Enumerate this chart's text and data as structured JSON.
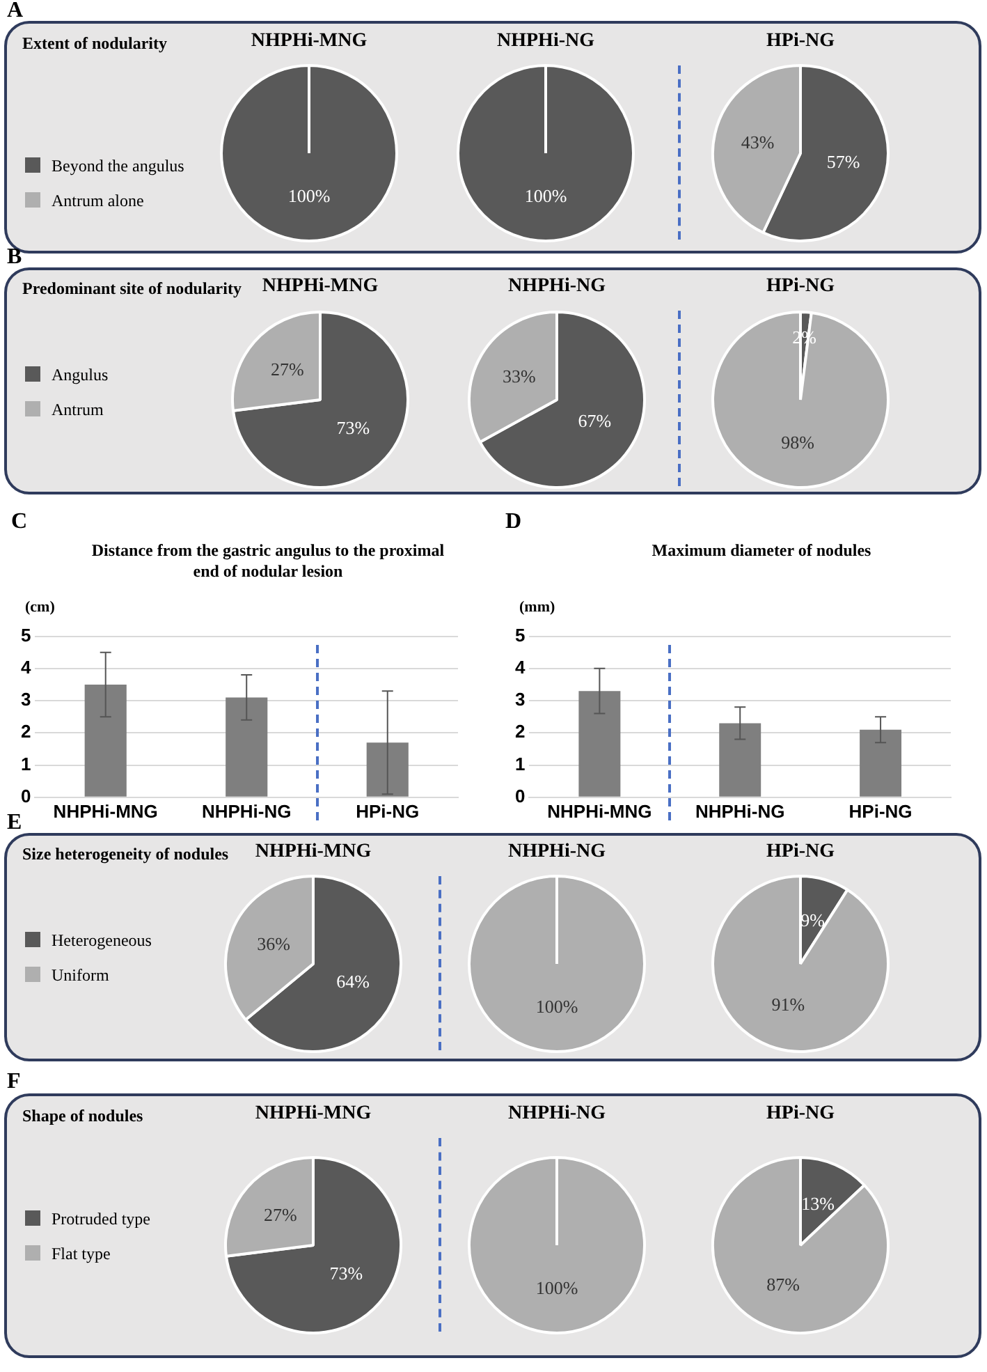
{
  "chart_data": [
    {
      "type": "pie",
      "title": "NHPHi-MNG",
      "categories": [
        "Beyond the angulus",
        "Antrum alone"
      ],
      "values": [
        100,
        0
      ],
      "colors": [
        "#595959",
        "#afafaf"
      ],
      "value_labels": [
        "100%",
        null
      ],
      "legend": "left",
      "annotations": [
        "A",
        "Extent of nodularity"
      ]
    },
    {
      "type": "pie",
      "title": "NHPHi-NG",
      "values": [
        100,
        0
      ],
      "colors": [
        "#595959",
        "#afafaf"
      ],
      "value_labels": [
        "100%",
        null
      ]
    },
    {
      "type": "pie",
      "title": "HPi-NG",
      "values": [
        57,
        43
      ],
      "colors": [
        "#595959",
        "#afafaf"
      ],
      "value_labels": [
        "57%",
        "43%"
      ]
    },
    {
      "type": "pie",
      "title": "NHPHi-MNG",
      "categories": [
        "Angulus",
        "Antrum"
      ],
      "values": [
        73,
        27
      ],
      "colors": [
        "#595959",
        "#afafaf"
      ],
      "value_labels": [
        "73%",
        "27%"
      ],
      "legend": "left",
      "annotations": [
        "B",
        "Predominant site of nodularity"
      ]
    },
    {
      "type": "pie",
      "title": "NHPHi-NG",
      "values": [
        67,
        33
      ],
      "colors": [
        "#595959",
        "#afafaf"
      ],
      "value_labels": [
        "67%",
        "33%"
      ]
    },
    {
      "type": "pie",
      "title": "HPi-NG",
      "values": [
        2,
        98
      ],
      "colors": [
        "#595959",
        "#afafaf"
      ],
      "value_labels": [
        "2%",
        "98%"
      ]
    },
    {
      "type": "bar",
      "title": "Distance from the gastric angulus to the proximal end of nodular lesion",
      "ylabel": "(cm)",
      "categories": [
        "NHPHi-MNG",
        "NHPHi-NG",
        "HPi-NG"
      ],
      "values": [
        3.5,
        3.1,
        1.7
      ],
      "errors": [
        1.0,
        0.7,
        1.6
      ],
      "color": "#7f7f7f",
      "ylim": [
        0,
        5
      ],
      "yticks": [
        0,
        1,
        2,
        3,
        4,
        5
      ],
      "grid": "y",
      "annotations": [
        "C"
      ]
    },
    {
      "type": "bar",
      "title": "Maximum diameter of nodules",
      "ylabel": "(mm)",
      "categories": [
        "NHPHi-MNG",
        "NHPHi-NG",
        "HPi-NG"
      ],
      "values": [
        3.3,
        2.3,
        2.1
      ],
      "errors": [
        0.7,
        0.5,
        0.4
      ],
      "color": "#7f7f7f",
      "ylim": [
        0,
        5
      ],
      "yticks": [
        0,
        1,
        2,
        3,
        4,
        5
      ],
      "grid": "y",
      "annotations": [
        "D"
      ]
    },
    {
      "type": "pie",
      "title": "NHPHi-MNG",
      "categories": [
        "Heterogeneous",
        "Uniform"
      ],
      "values": [
        64,
        36
      ],
      "colors": [
        "#595959",
        "#afafaf"
      ],
      "value_labels": [
        "64%",
        "36%"
      ],
      "legend": "left",
      "annotations": [
        "E",
        "Size heterogeneity of nodules"
      ]
    },
    {
      "type": "pie",
      "title": "NHPHi-NG",
      "values": [
        0,
        100
      ],
      "colors": [
        "#595959",
        "#afafaf"
      ],
      "value_labels": [
        null,
        "100%"
      ]
    },
    {
      "type": "pie",
      "title": "HPi-NG",
      "values": [
        9,
        91
      ],
      "colors": [
        "#595959",
        "#afafaf"
      ],
      "value_labels": [
        "9%",
        "91%"
      ]
    },
    {
      "type": "pie",
      "title": "NHPHi-MNG",
      "categories": [
        "Protruded type",
        "Flat type"
      ],
      "values": [
        73,
        27
      ],
      "colors": [
        "#595959",
        "#afafaf"
      ],
      "value_labels": [
        "73%",
        "27%"
      ],
      "legend": "left",
      "annotations": [
        "F",
        "Shape of nodules"
      ]
    },
    {
      "type": "pie",
      "title": "NHPHi-NG",
      "values": [
        0,
        100
      ],
      "colors": [
        "#595959",
        "#afafaf"
      ],
      "value_labels": [
        null,
        "100%"
      ]
    },
    {
      "type": "pie",
      "title": "HPi-NG",
      "values": [
        13,
        87
      ],
      "colors": [
        "#595959",
        "#afafaf"
      ],
      "value_labels": [
        "13%",
        "87%"
      ]
    }
  ]
}
